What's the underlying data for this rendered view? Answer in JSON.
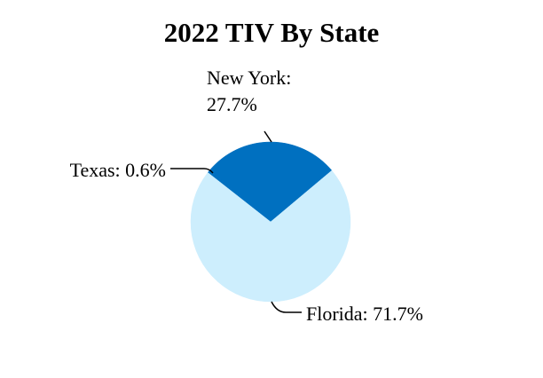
{
  "chart_data": {
    "type": "pie",
    "title": "2022 TIV By State",
    "categories": [
      "New York",
      "Texas",
      "Florida"
    ],
    "values": [
      27.7,
      0.6,
      71.7
    ],
    "value_labels": [
      "New York: 27.7%",
      "Texas: 0.6%",
      "Florida: 71.7%"
    ],
    "colors": [
      "#0070c0",
      "#0070c0",
      "#cdeefd"
    ]
  }
}
